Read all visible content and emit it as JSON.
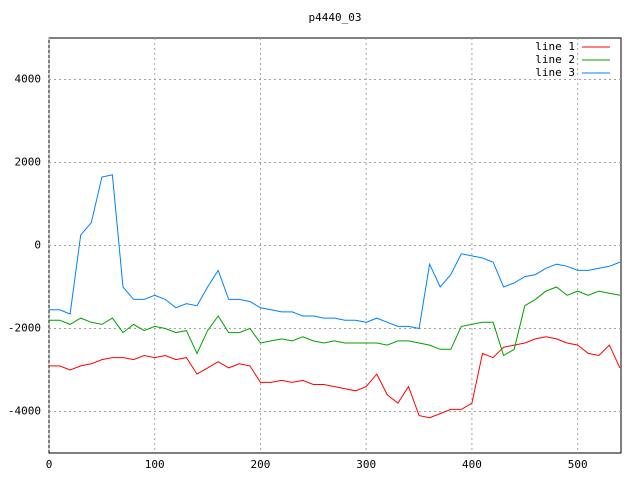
{
  "chart_data": {
    "type": "line",
    "title": "p4440_03",
    "x": [
      0,
      10,
      20,
      30,
      40,
      50,
      60,
      70,
      80,
      90,
      100,
      110,
      120,
      130,
      140,
      150,
      160,
      170,
      180,
      190,
      200,
      210,
      220,
      230,
      240,
      250,
      260,
      270,
      280,
      290,
      300,
      310,
      320,
      330,
      340,
      350,
      360,
      370,
      380,
      390,
      400,
      410,
      420,
      430,
      440,
      450,
      460,
      470,
      480,
      490,
      500,
      510,
      520,
      530,
      540
    ],
    "series": [
      {
        "name": "line 1",
        "color": "#ff0000",
        "values": [
          -2900,
          -2900,
          -3000,
          -2900,
          -2850,
          -2750,
          -2700,
          -2700,
          -2750,
          -2650,
          -2700,
          -2650,
          -2750,
          -2700,
          -3100,
          -2950,
          -2800,
          -2950,
          -2850,
          -2900,
          -3300,
          -3300,
          -3250,
          -3300,
          -3250,
          -3350,
          -3350,
          -3400,
          -3450,
          -3500,
          -3400,
          -3100,
          -3600,
          -3800,
          -3400,
          -4100,
          -4150,
          -4050,
          -3950,
          -3950,
          -3800,
          -2600,
          -2700,
          -2450,
          -2400,
          -2350,
          -2250,
          -2200,
          -2250,
          -2350,
          -2400,
          -2600,
          -2650,
          -2400,
          -2950
        ]
      },
      {
        "name": "line 2",
        "color": "#00a000",
        "values": [
          -1800,
          -1800,
          -1900,
          -1750,
          -1850,
          -1900,
          -1750,
          -2100,
          -1900,
          -2050,
          -1950,
          -2000,
          -2100,
          -2050,
          -2600,
          -2050,
          -1700,
          -2100,
          -2100,
          -2000,
          -2350,
          -2300,
          -2250,
          -2300,
          -2200,
          -2300,
          -2350,
          -2300,
          -2350,
          -2350,
          -2350,
          -2350,
          -2400,
          -2300,
          -2300,
          -2350,
          -2400,
          -2500,
          -2500,
          -1950,
          -1900,
          -1850,
          -1850,
          -2650,
          -2500,
          -1450,
          -1300,
          -1100,
          -1000,
          -1200,
          -1100,
          -1200,
          -1100,
          -1150,
          -1200
        ]
      },
      {
        "name": "line 3",
        "color": "#0080ff",
        "values": [
          -1550,
          -1550,
          -1650,
          250,
          550,
          1650,
          1700,
          -1000,
          -1300,
          -1300,
          -1200,
          -1300,
          -1500,
          -1400,
          -1450,
          -1000,
          -600,
          -1300,
          -1300,
          -1350,
          -1500,
          -1550,
          -1600,
          -1600,
          -1700,
          -1700,
          -1750,
          -1750,
          -1800,
          -1800,
          -1850,
          -1750,
          -1850,
          -1950,
          -1950,
          -2000,
          -450,
          -1000,
          -700,
          -200,
          -250,
          -300,
          -400,
          -1000,
          -900,
          -750,
          -700,
          -550,
          -450,
          -500,
          -600,
          -600,
          -550,
          -500,
          -400
        ]
      }
    ],
    "xlim": [
      0,
      541
    ],
    "ylim": [
      -5000,
      5000
    ],
    "xticks": [
      0,
      100,
      200,
      300,
      400,
      500
    ],
    "yticks": [
      -4000,
      -2000,
      0,
      2000,
      4000
    ],
    "grid": true,
    "legend": "top-right"
  }
}
